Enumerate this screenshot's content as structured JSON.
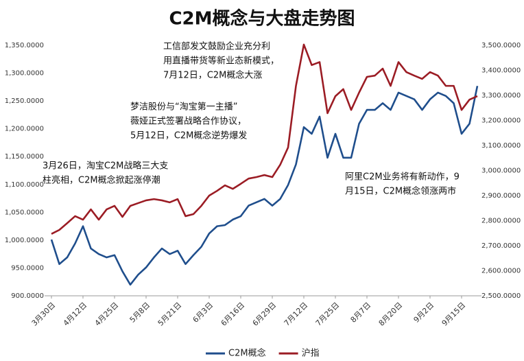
{
  "chart_data": {
    "type": "line",
    "title": "C2M概念与大盘走势图",
    "categories": [
      "3月30日",
      null,
      null,
      null,
      "4月12日",
      null,
      null,
      null,
      "4月25日",
      null,
      null,
      null,
      "5月8日",
      null,
      null,
      null,
      "5月21日",
      null,
      null,
      null,
      "6月3日",
      null,
      null,
      null,
      "6月16日",
      null,
      null,
      null,
      "6月29日",
      null,
      null,
      null,
      "7月12日",
      null,
      null,
      null,
      "7月25日",
      null,
      null,
      null,
      "8月7日",
      null,
      null,
      null,
      "8月20日",
      null,
      null,
      null,
      "9月2日",
      null,
      null,
      null,
      "9月15日",
      null,
      null
    ],
    "series": [
      {
        "name": "C2M概念",
        "color": "#1f4e8c",
        "values": [
          1001,
          957,
          969,
          994,
          1025,
          985,
          975,
          969,
          973,
          944,
          920,
          938,
          951,
          969,
          985,
          975,
          981,
          957,
          973,
          988,
          1012,
          1025,
          1027,
          1037,
          1043,
          1062,
          1068,
          1074,
          1062,
          1074,
          1099,
          1136,
          1203,
          1191,
          1222,
          1148,
          1191,
          1148,
          1148,
          1209,
          1234,
          1234,
          1246,
          1234,
          1265,
          1259,
          1253,
          1234,
          1253,
          1265,
          1259,
          1246,
          1191,
          1209,
          1277
        ]
      },
      {
        "name": "沪指",
        "color": "#9b1c24",
        "axis": "y2",
        "values": [
          2747,
          2763,
          2790,
          2818,
          2804,
          2845,
          2804,
          2845,
          2859,
          2815,
          2859,
          2870,
          2881,
          2886,
          2881,
          2873,
          2886,
          2818,
          2826,
          2859,
          2900,
          2919,
          2941,
          2927,
          2947,
          2968,
          2974,
          2982,
          2974,
          3023,
          3092,
          3338,
          3503,
          3421,
          3433,
          3229,
          3297,
          3325,
          3242,
          3311,
          3374,
          3379,
          3407,
          3338,
          3433,
          3393,
          3379,
          3366,
          3393,
          3379,
          3338,
          3338,
          3242,
          3283,
          3297
        ]
      }
    ],
    "ylim": [
      900,
      1350
    ],
    "yticks": [
      {
        "value": 900,
        "label": "900.0000"
      },
      {
        "value": 950,
        "label": "950.0000"
      },
      {
        "value": 1000,
        "label": "1,000.0000"
      },
      {
        "value": 1050,
        "label": "1,050.0000"
      },
      {
        "value": 1100,
        "label": "1,100.0000"
      },
      {
        "value": 1150,
        "label": "1,150.0000"
      },
      {
        "value": 1200,
        "label": "1,200.0000"
      },
      {
        "value": 1250,
        "label": "1,250.0000"
      },
      {
        "value": 1300,
        "label": "1,300.0000"
      },
      {
        "value": 1350,
        "label": "1,350.0000"
      }
    ],
    "y2lim": [
      2500,
      3500
    ],
    "y2ticks": [
      {
        "value": 2500,
        "label": "2,500.0000"
      },
      {
        "value": 2600,
        "label": "2,600.0000"
      },
      {
        "value": 2700,
        "label": "2,700.0000"
      },
      {
        "value": 2800,
        "label": "2,800.0000"
      },
      {
        "value": 2900,
        "label": "2,900.0000"
      },
      {
        "value": 3000,
        "label": "3,000.0000"
      },
      {
        "value": 3100,
        "label": "3,100.0000"
      },
      {
        "value": 3200,
        "label": "3,200.0000"
      },
      {
        "value": 3300,
        "label": "3,300.0000"
      },
      {
        "value": 3400,
        "label": "3,400.0000"
      },
      {
        "value": 3500,
        "label": "3,500.0000"
      }
    ],
    "grid": false,
    "legend": "bottom",
    "annotations": [
      {
        "lines": [
          "工信部发文鼓励企业充分利",
          "用直播带货等新业态新模式，",
          "7月12日，C2M概念大涨"
        ]
      },
      {
        "lines": [
          "梦洁股份与“淘宝第一主播”",
          "薇娅正式签署战略合作协议，",
          "5月12日，C2M概念逆势爆发"
        ]
      },
      {
        "lines": [
          "3月26日，淘宝C2M战略三大支",
          "柱亮相，C2M概念掀起涨停潮"
        ]
      },
      {
        "lines": [
          "阿里C2M业务将有新动作，9",
          "月15日，C2M概念领涨两市"
        ]
      }
    ]
  }
}
